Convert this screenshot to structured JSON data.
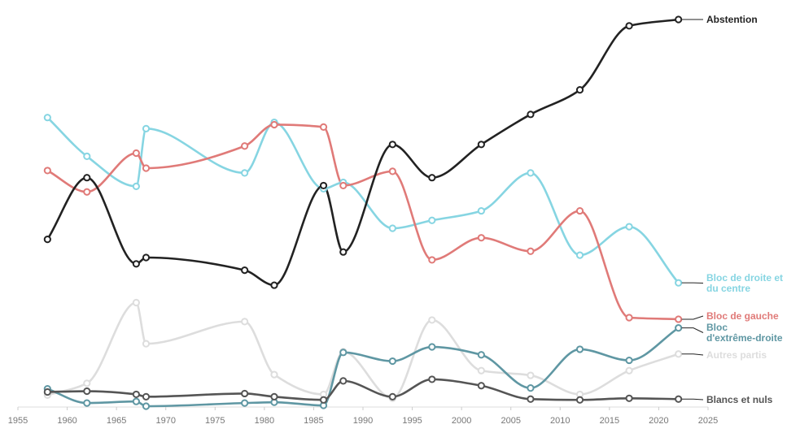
{
  "chart_data": {
    "type": "line",
    "xlim": [
      1955,
      2025
    ],
    "ylim": [
      0,
      49
    ],
    "x_ticks": [
      "1955",
      "1960",
      "1965",
      "1970",
      "1975",
      "1980",
      "1985",
      "1990",
      "1995",
      "2000",
      "2005",
      "2010",
      "2015",
      "2020",
      "2025"
    ],
    "grid": false,
    "legend": "inline-right",
    "series": [
      {
        "name": "Abstention",
        "label_lines": [
          "Abstention"
        ],
        "color": "#222222",
        "points": [
          [
            1958,
            21.2
          ],
          [
            1962,
            29.0
          ],
          [
            1967,
            18.1
          ],
          [
            1968,
            18.9
          ],
          [
            1978,
            17.3
          ],
          [
            1981,
            15.4
          ],
          [
            1986,
            28.0
          ],
          [
            1988,
            19.6
          ],
          [
            1993,
            33.2
          ],
          [
            1997,
            29.0
          ],
          [
            2002,
            33.2
          ],
          [
            2007,
            37.0
          ],
          [
            2012,
            40.1
          ],
          [
            2017,
            48.2
          ],
          [
            2022,
            49.0
          ]
        ]
      },
      {
        "name": "Bloc de droite et du centre",
        "label_lines": [
          "Bloc de droite et",
          "du centre"
        ],
        "color": "#86d5e2",
        "points": [
          [
            1958,
            36.6
          ],
          [
            1962,
            31.7
          ],
          [
            1967,
            27.9
          ],
          [
            1968,
            35.2
          ],
          [
            1978,
            29.6
          ],
          [
            1981,
            36.0
          ],
          [
            1986,
            27.6
          ],
          [
            1988,
            28.4
          ],
          [
            1993,
            22.6
          ],
          [
            1997,
            23.6
          ],
          [
            2002,
            24.8
          ],
          [
            2007,
            29.6
          ],
          [
            2012,
            19.2
          ],
          [
            2017,
            22.8
          ],
          [
            2022,
            15.7
          ]
        ]
      },
      {
        "name": "Bloc de gauche",
        "label_lines": [
          "Bloc de gauche"
        ],
        "color": "#e07a78",
        "points": [
          [
            1958,
            29.9
          ],
          [
            1962,
            27.2
          ],
          [
            1967,
            32.1
          ],
          [
            1968,
            30.2
          ],
          [
            1978,
            33.0
          ],
          [
            1981,
            35.7
          ],
          [
            1986,
            35.4
          ],
          [
            1988,
            28.0
          ],
          [
            1993,
            29.8
          ],
          [
            1997,
            18.6
          ],
          [
            2002,
            21.4
          ],
          [
            2007,
            19.7
          ],
          [
            2012,
            24.8
          ],
          [
            2017,
            11.3
          ],
          [
            2022,
            11.1
          ]
        ]
      },
      {
        "name": "Bloc d'extrême-droite",
        "label_lines": [
          "Bloc",
          "d'extrême-droite"
        ],
        "color": "#5f97a3",
        "points": [
          [
            1958,
            2.3
          ],
          [
            1962,
            0.5
          ],
          [
            1967,
            0.7
          ],
          [
            1968,
            0.1
          ],
          [
            1978,
            0.5
          ],
          [
            1981,
            0.6
          ],
          [
            1986,
            0.2
          ],
          [
            1988,
            6.9
          ],
          [
            1993,
            5.8
          ],
          [
            1997,
            7.6
          ],
          [
            2002,
            6.6
          ],
          [
            2007,
            2.4
          ],
          [
            2012,
            7.3
          ],
          [
            2017,
            5.9
          ],
          [
            2022,
            10.0
          ]
        ]
      },
      {
        "name": "Autres partis",
        "label_lines": [
          "Autres partis"
        ],
        "color": "#dddddd",
        "points": [
          [
            1958,
            1.5
          ],
          [
            1962,
            3.0
          ],
          [
            1967,
            13.2
          ],
          [
            1968,
            8.0
          ],
          [
            1978,
            10.8
          ],
          [
            1981,
            4.1
          ],
          [
            1986,
            1.6
          ],
          [
            1988,
            7.0
          ],
          [
            1993,
            1.1
          ],
          [
            1997,
            11.0
          ],
          [
            2002,
            4.6
          ],
          [
            2007,
            4.0
          ],
          [
            2012,
            1.6
          ],
          [
            2017,
            4.6
          ],
          [
            2022,
            6.7
          ]
        ]
      },
      {
        "name": "Blancs et nuls",
        "label_lines": [
          "Blancs et nuls"
        ],
        "color": "#555555",
        "points": [
          [
            1958,
            1.9
          ],
          [
            1962,
            2.0
          ],
          [
            1967,
            1.6
          ],
          [
            1968,
            1.3
          ],
          [
            1978,
            1.7
          ],
          [
            1981,
            1.3
          ],
          [
            1986,
            0.9
          ],
          [
            1988,
            3.3
          ],
          [
            1993,
            1.3
          ],
          [
            1997,
            3.5
          ],
          [
            2002,
            2.7
          ],
          [
            2007,
            1.0
          ],
          [
            2012,
            0.9
          ],
          [
            2017,
            1.1
          ],
          [
            2022,
            1.0
          ]
        ]
      }
    ]
  }
}
